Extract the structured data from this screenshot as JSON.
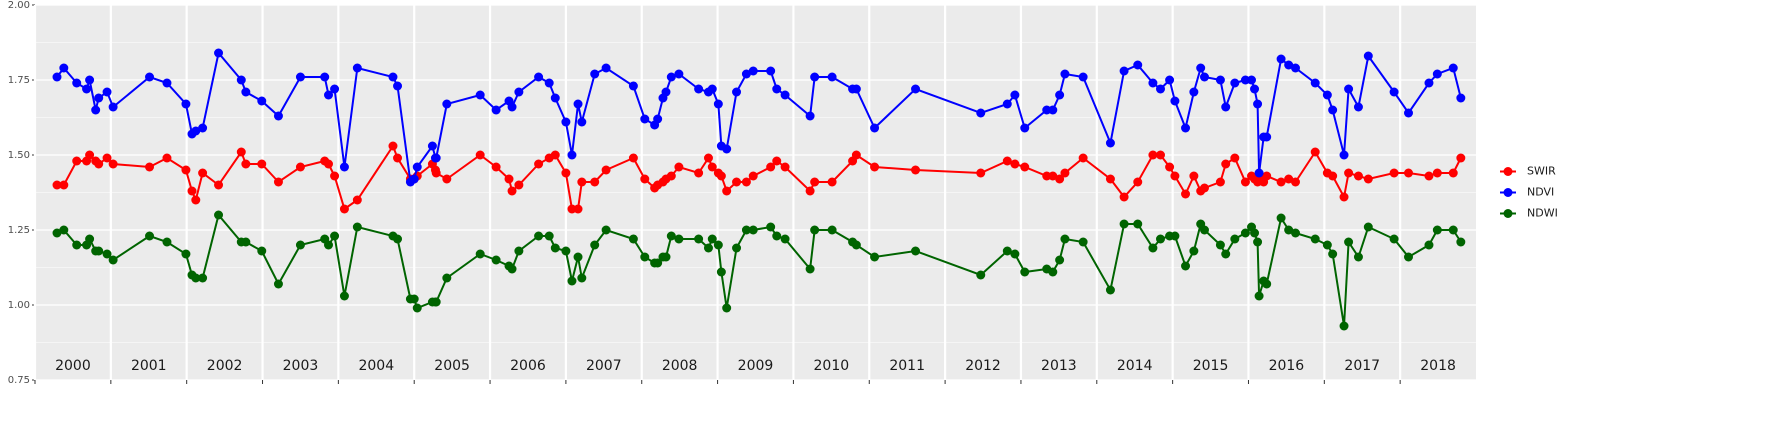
{
  "chart_data": {
    "type": "line",
    "x": [
      2000.29,
      2000.38,
      2000.55,
      2000.68,
      2000.72,
      2000.8,
      2000.84,
      2000.95,
      2001.03,
      2001.51,
      2001.74,
      2001.99,
      2002.07,
      2002.12,
      2002.21,
      2002.42,
      2002.72,
      2002.78,
      2002.99,
      2003.21,
      2003.5,
      2003.82,
      2003.87,
      2003.95,
      2004.08,
      2004.25,
      2004.72,
      2004.78,
      2004.95,
      2005,
      2005.04,
      2005.24,
      2005.28,
      2005.29,
      2005.43,
      2005.87,
      2006.08,
      2006.25,
      2006.29,
      2006.38,
      2006.64,
      2006.78,
      2006.86,
      2007,
      2007.08,
      2007.16,
      2007.21,
      2007.38,
      2007.53,
      2007.89,
      2008.04,
      2008.17,
      2008.21,
      2008.28,
      2008.32,
      2008.39,
      2008.49,
      2008.75,
      2008.88,
      2008.93,
      2009.01,
      2009.05,
      2009.12,
      2009.25,
      2009.38,
      2009.47,
      2009.7,
      2009.78,
      2009.89,
      2010.22,
      2010.28,
      2010.51,
      2010.78,
      2010.83,
      2011.07,
      2011.61,
      2012.47,
      2012.82,
      2012.92,
      2013.05,
      2013.34,
      2013.42,
      2013.51,
      2013.58,
      2013.82,
      2014.18,
      2014.36,
      2014.54,
      2014.74,
      2014.84,
      2014.96,
      2015.03,
      2015.17,
      2015.28,
      2015.37,
      2015.42,
      2015.63,
      2015.7,
      2015.82,
      2015.96,
      2016.04,
      2016.08,
      2016.12,
      2016.14,
      2016.2,
      2016.24,
      2016.43,
      2016.53,
      2016.62,
      2016.88,
      2017.04,
      2017.11,
      2017.26,
      2017.32,
      2017.45,
      2017.58,
      2017.92,
      2018.11,
      2018.38,
      2018.49,
      2018.7,
      2018.8
    ],
    "series": [
      {
        "name": "SWIR",
        "color": "#ff0000",
        "values": [
          1.4,
          1.4,
          1.48,
          1.48,
          1.5,
          1.48,
          1.47,
          1.49,
          1.47,
          1.46,
          1.49,
          1.45,
          1.38,
          1.35,
          1.44,
          1.4,
          1.51,
          1.47,
          1.47,
          1.41,
          1.46,
          1.48,
          1.47,
          1.43,
          1.32,
          1.35,
          1.53,
          1.49,
          1.42,
          1.42,
          1.43,
          1.47,
          1.45,
          1.44,
          1.42,
          1.5,
          1.46,
          1.42,
          1.38,
          1.4,
          1.47,
          1.49,
          1.5,
          1.44,
          1.32,
          1.32,
          1.41,
          1.41,
          1.45,
          1.49,
          1.42,
          1.39,
          1.4,
          1.41,
          1.42,
          1.43,
          1.46,
          1.44,
          1.49,
          1.46,
          1.44,
          1.43,
          1.38,
          1.41,
          1.41,
          1.43,
          1.46,
          1.48,
          1.46,
          1.38,
          1.41,
          1.41,
          1.48,
          1.5,
          1.46,
          1.45,
          1.44,
          1.48,
          1.47,
          1.46,
          1.43,
          1.43,
          1.42,
          1.44,
          1.49,
          1.42,
          1.36,
          1.41,
          1.5,
          1.5,
          1.46,
          1.43,
          1.37,
          1.43,
          1.38,
          1.39,
          1.41,
          1.47,
          1.49,
          1.41,
          1.43,
          1.42,
          1.41,
          1.43,
          1.41,
          1.43,
          1.41,
          1.42,
          1.41,
          1.51,
          1.44,
          1.43,
          1.36,
          1.44,
          1.43,
          1.42,
          1.44,
          1.44,
          1.43,
          1.44,
          1.44,
          1.49
        ]
      },
      {
        "name": "NDVI",
        "color": "#0000ff",
        "values": [
          1.76,
          1.79,
          1.74,
          1.72,
          1.75,
          1.65,
          1.69,
          1.71,
          1.66,
          1.76,
          1.74,
          1.67,
          1.57,
          1.58,
          1.59,
          1.84,
          1.75,
          1.71,
          1.68,
          1.63,
          1.76,
          1.76,
          1.7,
          1.72,
          1.46,
          1.79,
          1.76,
          1.73,
          1.41,
          1.42,
          1.46,
          1.53,
          1.49,
          1.49,
          1.67,
          1.7,
          1.65,
          1.68,
          1.66,
          1.71,
          1.76,
          1.74,
          1.69,
          1.61,
          1.5,
          1.67,
          1.61,
          1.77,
          1.79,
          1.73,
          1.62,
          1.6,
          1.62,
          1.69,
          1.71,
          1.76,
          1.77,
          1.72,
          1.71,
          1.72,
          1.67,
          1.53,
          1.52,
          1.71,
          1.77,
          1.78,
          1.78,
          1.72,
          1.7,
          1.63,
          1.76,
          1.76,
          1.72,
          1.72,
          1.59,
          1.72,
          1.64,
          1.67,
          1.7,
          1.59,
          1.65,
          1.65,
          1.7,
          1.77,
          1.76,
          1.54,
          1.78,
          1.8,
          1.74,
          1.72,
          1.75,
          1.68,
          1.59,
          1.71,
          1.79,
          1.76,
          1.75,
          1.66,
          1.74,
          1.75,
          1.75,
          1.72,
          1.67,
          1.44,
          1.56,
          1.56,
          1.82,
          1.8,
          1.79,
          1.74,
          1.7,
          1.65,
          1.5,
          1.72,
          1.66,
          1.83,
          1.71,
          1.64,
          1.74,
          1.77,
          1.79,
          1.69
        ]
      },
      {
        "name": "NDWI",
        "color": "#006400",
        "values": [
          1.24,
          1.25,
          1.2,
          1.2,
          1.22,
          1.18,
          1.18,
          1.17,
          1.15,
          1.23,
          1.21,
          1.17,
          1.1,
          1.09,
          1.09,
          1.3,
          1.21,
          1.21,
          1.18,
          1.07,
          1.2,
          1.22,
          1.2,
          1.23,
          1.03,
          1.26,
          1.23,
          1.22,
          1.02,
          1.02,
          0.99,
          1.01,
          1.01,
          1.01,
          1.09,
          1.17,
          1.15,
          1.13,
          1.12,
          1.18,
          1.23,
          1.23,
          1.19,
          1.18,
          1.08,
          1.16,
          1.09,
          1.2,
          1.25,
          1.22,
          1.16,
          1.14,
          1.14,
          1.16,
          1.16,
          1.23,
          1.22,
          1.22,
          1.19,
          1.22,
          1.2,
          1.11,
          0.99,
          1.19,
          1.25,
          1.25,
          1.26,
          1.23,
          1.22,
          1.12,
          1.25,
          1.25,
          1.21,
          1.2,
          1.16,
          1.18,
          1.1,
          1.18,
          1.17,
          1.11,
          1.12,
          1.11,
          1.15,
          1.22,
          1.21,
          1.05,
          1.27,
          1.27,
          1.19,
          1.22,
          1.23,
          1.23,
          1.13,
          1.18,
          1.27,
          1.25,
          1.2,
          1.17,
          1.22,
          1.24,
          1.26,
          1.24,
          1.21,
          1.03,
          1.08,
          1.07,
          1.29,
          1.25,
          1.24,
          1.22,
          1.2,
          1.17,
          0.93,
          1.21,
          1.16,
          1.26,
          1.22,
          1.16,
          1.2,
          1.25,
          1.25,
          1.21
        ]
      }
    ],
    "xlim": [
      2000,
      2019
    ],
    "xticks": [
      {
        "value": 2000.5,
        "label": "2000"
      },
      {
        "value": 2001.5,
        "label": "2001"
      },
      {
        "value": 2002.5,
        "label": "2002"
      },
      {
        "value": 2003.5,
        "label": "2003"
      },
      {
        "value": 2004.5,
        "label": "2004"
      },
      {
        "value": 2005.5,
        "label": "2005"
      },
      {
        "value": 2006.5,
        "label": "2006"
      },
      {
        "value": 2007.5,
        "label": "2007"
      },
      {
        "value": 2008.5,
        "label": "2008"
      },
      {
        "value": 2009.5,
        "label": "2009"
      },
      {
        "value": 2010.5,
        "label": "2010"
      },
      {
        "value": 2011.5,
        "label": "2011"
      },
      {
        "value": 2012.5,
        "label": "2012"
      },
      {
        "value": 2013.5,
        "label": "2013"
      },
      {
        "value": 2014.5,
        "label": "2014"
      },
      {
        "value": 2015.5,
        "label": "2015"
      },
      {
        "value": 2016.5,
        "label": "2016"
      },
      {
        "value": 2017.5,
        "label": "2017"
      },
      {
        "value": 2018.5,
        "label": "2018"
      }
    ],
    "ylim": [
      0.75,
      2.0
    ],
    "yticks": [
      {
        "value": 0.75,
        "label": "0.75"
      },
      {
        "value": 1.0,
        "label": "1.00"
      },
      {
        "value": 1.25,
        "label": "1.25"
      },
      {
        "value": 1.5,
        "label": "1.50"
      },
      {
        "value": 1.75,
        "label": "1.75"
      },
      {
        "value": 2.0,
        "label": "2.00"
      }
    ],
    "grid": true,
    "legend": "right"
  }
}
